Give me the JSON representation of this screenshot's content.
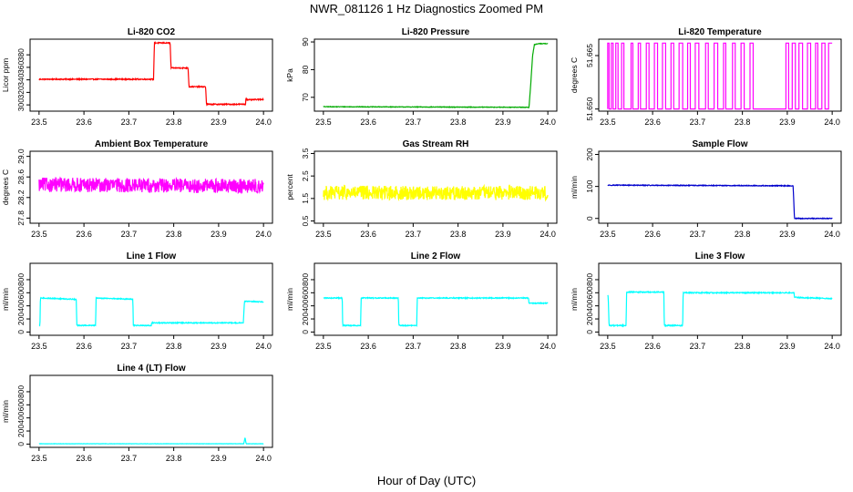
{
  "figure": {
    "title": "NWR_081126  1 Hz Diagnostics Zoomed PM",
    "xlabel": "Hour of Day (UTC)"
  },
  "chart_data": [
    {
      "type": "line",
      "title": "Li-820 CO2",
      "ylabel": "Licor ppm",
      "color": "#ff0000",
      "xlim": [
        23.48,
        24.02
      ],
      "ylim": [
        290,
        405
      ],
      "x_ticks": [
        "23.5",
        "23.6",
        "23.7",
        "23.8",
        "23.9",
        "24.0"
      ],
      "y_ticks": [
        "300",
        "320",
        "340",
        "360",
        "380"
      ],
      "noise": 0.8,
      "x": [
        23.5,
        23.755,
        23.757,
        23.792,
        23.794,
        23.832,
        23.834,
        23.871,
        23.873,
        23.958,
        23.96,
        23.961,
        23.963,
        24.0
      ],
      "values": [
        341,
        341,
        399,
        399,
        359,
        359,
        329,
        329,
        301,
        301,
        301,
        312,
        308,
        309
      ]
    },
    {
      "type": "line",
      "title": "Li-820 Pressure",
      "ylabel": "kPa",
      "color": "#00aa00",
      "xlim": [
        23.48,
        24.02
      ],
      "ylim": [
        65,
        91
      ],
      "x_ticks": [
        "23.5",
        "23.6",
        "23.7",
        "23.8",
        "23.9",
        "24.0"
      ],
      "y_ticks": [
        "70",
        "80",
        "90"
      ],
      "noise": 0.1,
      "x": [
        23.5,
        23.95,
        23.958,
        23.962,
        23.966,
        23.97,
        23.98,
        24.0
      ],
      "values": [
        66.6,
        66.4,
        66.3,
        75,
        85,
        89,
        89.4,
        89.4
      ]
    },
    {
      "type": "line",
      "title": "Li-820 Temperature",
      "ylabel": "degrees C",
      "color": "#ff00ff",
      "xlim": [
        23.48,
        24.02
      ],
      "ylim": [
        51.6494,
        51.6696
      ],
      "x_ticks": [
        "23.5",
        "23.6",
        "23.7",
        "23.8",
        "23.9",
        "24.0"
      ],
      "y_ticks": [
        "51.650",
        "51.665"
      ],
      "noise": 0,
      "x": [
        23.5,
        23.5,
        23.503,
        23.503,
        23.508,
        23.508,
        23.512,
        23.512,
        23.518,
        23.518,
        23.523,
        23.523,
        23.531,
        23.531,
        23.536,
        23.536,
        23.552,
        23.552,
        23.556,
        23.556,
        23.568,
        23.568,
        23.573,
        23.573,
        23.586,
        23.586,
        23.592,
        23.592,
        23.604,
        23.604,
        23.611,
        23.611,
        23.622,
        23.622,
        23.629,
        23.629,
        23.641,
        23.641,
        23.647,
        23.647,
        23.659,
        23.659,
        23.667,
        23.667,
        23.678,
        23.678,
        23.684,
        23.684,
        23.695,
        23.695,
        23.703,
        23.703,
        23.718,
        23.718,
        23.724,
        23.724,
        23.737,
        23.737,
        23.745,
        23.745,
        23.758,
        23.758,
        23.763,
        23.763,
        23.778,
        23.778,
        23.784,
        23.784,
        23.797,
        23.797,
        23.804,
        23.804,
        23.817,
        23.817,
        23.824,
        23.824,
        23.897,
        23.897,
        23.903,
        23.903,
        23.911,
        23.911,
        23.918,
        23.918,
        23.926,
        23.926,
        23.934,
        23.934,
        23.945,
        23.945,
        23.952,
        23.952,
        23.963,
        23.963,
        23.968,
        23.968,
        23.977,
        23.977,
        23.984,
        23.984,
        23.992,
        23.992,
        24.0
      ],
      "values": [
        51.65,
        51.6685,
        51.6685,
        51.65,
        51.65,
        51.6685,
        51.6685,
        51.65,
        51.65,
        51.6685,
        51.6685,
        51.65,
        51.65,
        51.6685,
        51.6685,
        51.65,
        51.65,
        51.6685,
        51.6685,
        51.65,
        51.65,
        51.6685,
        51.6685,
        51.65,
        51.65,
        51.6685,
        51.6685,
        51.65,
        51.65,
        51.6685,
        51.6685,
        51.65,
        51.65,
        51.6685,
        51.6685,
        51.65,
        51.65,
        51.6685,
        51.6685,
        51.65,
        51.65,
        51.6685,
        51.6685,
        51.65,
        51.65,
        51.6685,
        51.6685,
        51.65,
        51.65,
        51.6685,
        51.6685,
        51.65,
        51.65,
        51.6685,
        51.6685,
        51.65,
        51.65,
        51.6685,
        51.6685,
        51.65,
        51.65,
        51.6685,
        51.6685,
        51.65,
        51.65,
        51.6685,
        51.6685,
        51.65,
        51.65,
        51.6685,
        51.6685,
        51.65,
        51.65,
        51.6685,
        51.6685,
        51.65,
        51.65,
        51.6685,
        51.6685,
        51.65,
        51.65,
        51.6685,
        51.6685,
        51.65,
        51.65,
        51.6685,
        51.6685,
        51.65,
        51.65,
        51.6685,
        51.6685,
        51.65,
        51.65,
        51.6685,
        51.6685,
        51.65,
        51.65,
        51.6685,
        51.6685,
        51.65,
        51.65,
        51.6685,
        51.6685
      ]
    },
    {
      "type": "line",
      "title": "Ambient Box Temperature",
      "ylabel": "degrees C",
      "color": "#ff00ff",
      "xlim": [
        23.48,
        24.02
      ],
      "ylim": [
        27.7,
        29.1
      ],
      "x_ticks": [
        "23.5",
        "23.6",
        "23.7",
        "23.8",
        "23.9",
        "24.0"
      ],
      "y_ticks": [
        "27.8",
        "28.2",
        "28.6",
        "29.0"
      ],
      "noise": 0.14,
      "x": [
        23.5,
        24.0
      ],
      "values": [
        28.45,
        28.42
      ]
    },
    {
      "type": "line",
      "title": "Gas Stream RH",
      "ylabel": "percent",
      "color": "#ffff00",
      "xlim": [
        23.48,
        24.02
      ],
      "ylim": [
        0.4,
        3.6
      ],
      "x_ticks": [
        "23.5",
        "23.6",
        "23.7",
        "23.8",
        "23.9",
        "24.0"
      ],
      "y_ticks": [
        "0.5",
        "1.5",
        "2.5",
        "3.5"
      ],
      "noise": 0.32,
      "x": [
        23.5,
        24.0
      ],
      "values": [
        1.75,
        1.75
      ]
    },
    {
      "type": "line",
      "title": "Sample Flow",
      "ylabel": "ml/min",
      "color": "#0000cc",
      "xlim": [
        23.48,
        24.02
      ],
      "ylim": [
        -15,
        210
      ],
      "x_ticks": [
        "23.5",
        "23.6",
        "23.7",
        "23.8",
        "23.9",
        "24.0"
      ],
      "y_ticks": [
        "0",
        "100",
        "200"
      ],
      "noise": 1.2,
      "x": [
        23.5,
        23.91,
        23.913,
        23.916,
        24.0
      ],
      "values": [
        104,
        102,
        102,
        0,
        0
      ]
    },
    {
      "type": "line",
      "title": "Line 1 Flow",
      "ylabel": "ml/min",
      "color": "#00ffff",
      "xlim": [
        23.48,
        24.02
      ],
      "ylim": [
        -50,
        1050
      ],
      "x_ticks": [
        "23.5",
        "23.6",
        "23.7",
        "23.8",
        "23.9",
        "24.0"
      ],
      "y_ticks": [
        "0",
        "200",
        "400",
        "600",
        "800"
      ],
      "noise": 7,
      "x": [
        23.5,
        23.502,
        23.503,
        23.583,
        23.584,
        23.626,
        23.627,
        23.709,
        23.71,
        23.75,
        23.751,
        23.955,
        23.957,
        23.958,
        24.0
      ],
      "values": [
        100,
        100,
        520,
        500,
        100,
        100,
        520,
        500,
        100,
        100,
        140,
        140,
        400,
        470,
        460
      ]
    },
    {
      "type": "line",
      "title": "Line 2 Flow",
      "ylabel": "ml/min",
      "color": "#00ffff",
      "xlim": [
        23.48,
        24.02
      ],
      "ylim": [
        -50,
        1050
      ],
      "x_ticks": [
        "23.5",
        "23.6",
        "23.7",
        "23.8",
        "23.9",
        "24.0"
      ],
      "y_ticks": [
        "0",
        "200",
        "400",
        "600",
        "800"
      ],
      "noise": 7,
      "x": [
        23.5,
        23.542,
        23.543,
        23.583,
        23.584,
        23.667,
        23.668,
        23.708,
        23.709,
        23.957,
        23.958,
        24.0
      ],
      "values": [
        520,
        520,
        100,
        100,
        520,
        520,
        100,
        100,
        520,
        520,
        440,
        440
      ]
    },
    {
      "type": "line",
      "title": "Line 3 Flow",
      "ylabel": "ml/min",
      "color": "#00ffff",
      "xlim": [
        23.48,
        24.02
      ],
      "ylim": [
        -50,
        1050
      ],
      "x_ticks": [
        "23.5",
        "23.6",
        "23.7",
        "23.8",
        "23.9",
        "24.0"
      ],
      "y_ticks": [
        "0",
        "200",
        "400",
        "600",
        "800"
      ],
      "noise": 8,
      "x": [
        23.5,
        23.501,
        23.503,
        23.541,
        23.542,
        23.625,
        23.626,
        23.667,
        23.668,
        23.915,
        23.916,
        24.0
      ],
      "values": [
        560,
        560,
        100,
        100,
        610,
        610,
        100,
        100,
        600,
        600,
        530,
        510
      ]
    },
    {
      "type": "line",
      "title": "Line 4 (LT) Flow",
      "ylabel": "ml/min",
      "color": "#00ffff",
      "xlim": [
        23.48,
        24.02
      ],
      "ylim": [
        -50,
        1050
      ],
      "x_ticks": [
        "23.5",
        "23.6",
        "23.7",
        "23.8",
        "23.9",
        "24.0"
      ],
      "y_ticks": [
        "0",
        "200",
        "400",
        "600",
        "800"
      ],
      "noise": 2,
      "x": [
        23.5,
        23.956,
        23.958,
        23.959,
        23.961,
        23.962,
        24.0
      ],
      "values": [
        5,
        5,
        70,
        100,
        15,
        5,
        5
      ]
    }
  ]
}
